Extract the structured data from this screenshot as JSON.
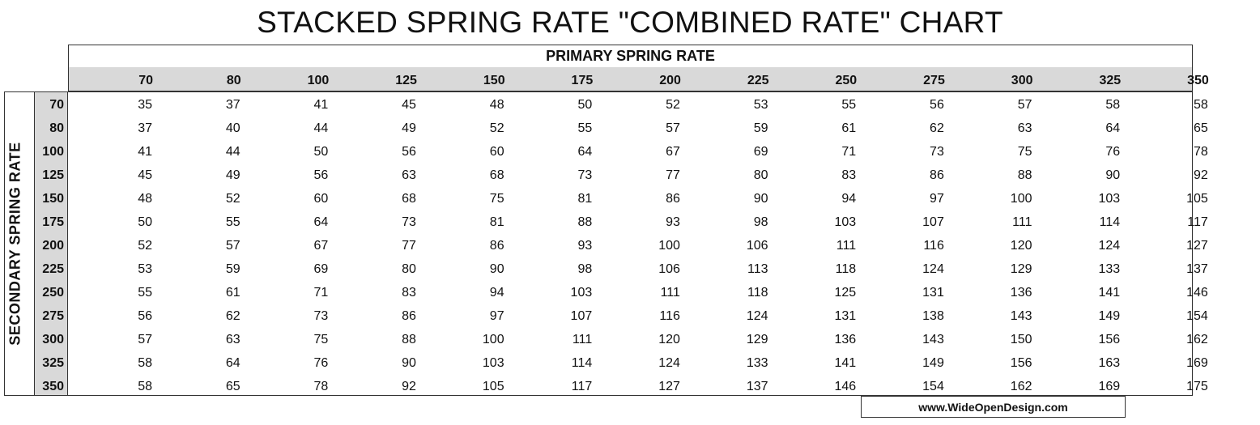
{
  "title": "STACKED SPRING RATE \"COMBINED RATE\" CHART",
  "primary_label": "PRIMARY SPRING RATE",
  "secondary_label": "SECONDARY SPRING RATE",
  "website": "www.WideOpenDesign.com",
  "chart_data": {
    "type": "table",
    "title": "STACKED SPRING RATE \"COMBINED RATE\" CHART",
    "column_header_label": "PRIMARY SPRING RATE",
    "row_header_label": "SECONDARY SPRING RATE",
    "columns": [
      "70",
      "80",
      "100",
      "125",
      "150",
      "175",
      "200",
      "225",
      "250",
      "275",
      "300",
      "325",
      "350"
    ],
    "rows": [
      "70",
      "80",
      "100",
      "125",
      "150",
      "175",
      "200",
      "225",
      "250",
      "275",
      "300",
      "325",
      "350"
    ],
    "values": [
      [
        "35",
        "37",
        "41",
        "45",
        "48",
        "50",
        "52",
        "53",
        "55",
        "56",
        "57",
        "58",
        "58"
      ],
      [
        "37",
        "40",
        "44",
        "49",
        "52",
        "55",
        "57",
        "59",
        "61",
        "62",
        "63",
        "64",
        "65"
      ],
      [
        "41",
        "44",
        "50",
        "56",
        "60",
        "64",
        "67",
        "69",
        "71",
        "73",
        "75",
        "76",
        "78"
      ],
      [
        "45",
        "49",
        "56",
        "63",
        "68",
        "73",
        "77",
        "80",
        "83",
        "86",
        "88",
        "90",
        "92"
      ],
      [
        "48",
        "52",
        "60",
        "68",
        "75",
        "81",
        "86",
        "90",
        "94",
        "97",
        "100",
        "103",
        "105"
      ],
      [
        "50",
        "55",
        "64",
        "73",
        "81",
        "88",
        "93",
        "98",
        "103",
        "107",
        "111",
        "114",
        "117"
      ],
      [
        "52",
        "57",
        "67",
        "77",
        "86",
        "93",
        "100",
        "106",
        "111",
        "116",
        "120",
        "124",
        "127"
      ],
      [
        "53",
        "59",
        "69",
        "80",
        "90",
        "98",
        "106",
        "113",
        "118",
        "124",
        "129",
        "133",
        "137"
      ],
      [
        "55",
        "61",
        "71",
        "83",
        "94",
        "103",
        "111",
        "118",
        "125",
        "131",
        "136",
        "141",
        "146"
      ],
      [
        "56",
        "62",
        "73",
        "86",
        "97",
        "107",
        "116",
        "124",
        "131",
        "138",
        "143",
        "149",
        "154"
      ],
      [
        "57",
        "63",
        "75",
        "88",
        "100",
        "111",
        "120",
        "129",
        "136",
        "143",
        "150",
        "156",
        "162"
      ],
      [
        "58",
        "64",
        "76",
        "90",
        "103",
        "114",
        "124",
        "133",
        "141",
        "149",
        "156",
        "163",
        "169"
      ],
      [
        "58",
        "65",
        "78",
        "92",
        "105",
        "117",
        "127",
        "137",
        "146",
        "154",
        "162",
        "169",
        "175"
      ]
    ]
  }
}
